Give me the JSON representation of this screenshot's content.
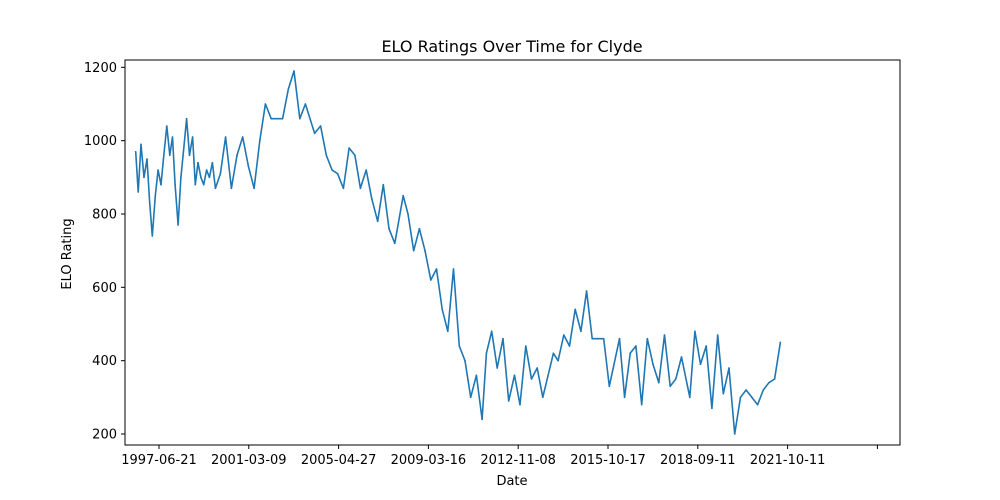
{
  "chart_data": {
    "type": "line",
    "title": "ELO Ratings Over Time for Clyde",
    "xlabel": "Date",
    "ylabel": "ELO Rating",
    "ylim": [
      170,
      1220
    ],
    "grid": false,
    "line_color": "#1f77b4",
    "xlim": [
      "1997-01-01",
      "2030-12-31"
    ],
    "x_ticks": [
      "1997-06-21",
      "2001-03-09",
      "2005-04-27",
      "2009-03-16",
      "2012-11-08",
      "2015-10-17",
      "2018-09-11",
      "2021-10-11",
      ""
    ],
    "y_ticks": [
      200,
      400,
      600,
      800,
      1000,
      1200
    ],
    "series": [
      {
        "x": [
          "1997-06-21",
          "1997-08-01",
          "1997-09-15",
          "1997-11-01",
          "1997-12-20",
          "1998-02-01",
          "1998-03-15",
          "1998-05-01",
          "1998-06-15",
          "1998-08-01",
          "1998-09-15",
          "1998-11-01",
          "1998-12-20",
          "1999-02-01",
          "1999-03-15",
          "1999-05-01",
          "1999-06-15",
          "1999-08-01",
          "1999-09-15",
          "1999-11-01",
          "1999-12-20",
          "2000-02-01",
          "2000-03-15",
          "2000-05-01",
          "2000-06-15",
          "2000-08-01",
          "2000-09-15",
          "2000-11-01",
          "2000-12-20",
          "2001-03-09",
          "2001-06-01",
          "2001-09-01",
          "2001-12-01",
          "2002-03-01",
          "2002-06-01",
          "2002-09-01",
          "2002-12-01",
          "2003-03-01",
          "2003-06-01",
          "2003-09-01",
          "2003-12-01",
          "2004-03-01",
          "2004-06-01",
          "2004-09-01",
          "2004-12-01",
          "2005-04-27",
          "2005-08-01",
          "2005-11-01",
          "2006-02-01",
          "2006-05-01",
          "2006-08-01",
          "2006-11-01",
          "2007-02-01",
          "2007-05-01",
          "2007-08-01",
          "2007-11-01",
          "2008-02-01",
          "2008-05-01",
          "2008-08-01",
          "2008-11-01",
          "2009-03-16",
          "2009-06-01",
          "2009-09-01",
          "2009-12-01",
          "2010-03-01",
          "2010-06-01",
          "2010-09-01",
          "2010-12-01",
          "2011-03-01",
          "2011-06-01",
          "2011-09-01",
          "2011-12-01",
          "2012-03-01",
          "2012-06-01",
          "2012-09-01",
          "2012-11-08",
          "2013-02-01",
          "2013-05-01",
          "2013-08-01",
          "2013-11-01",
          "2014-02-01",
          "2014-05-01",
          "2014-08-01",
          "2014-11-01",
          "2015-02-01",
          "2015-05-01",
          "2015-10-17",
          "2016-01-01",
          "2016-04-01",
          "2016-07-01",
          "2016-10-01",
          "2017-01-01",
          "2017-04-01",
          "2017-07-01",
          "2017-10-01",
          "2018-01-01",
          "2018-04-01",
          "2018-09-11",
          "2018-12-01",
          "2019-03-01",
          "2019-06-01",
          "2019-09-01",
          "2019-12-01",
          "2020-03-01",
          "2020-06-01",
          "2020-09-01",
          "2020-12-01",
          "2021-03-01",
          "2021-06-01",
          "2021-10-11",
          "2022-01-01",
          "2022-04-01",
          "2022-07-01",
          "2022-10-01",
          "2023-01-01",
          "2023-04-01",
          "2023-07-01",
          "2023-10-01",
          "2024-01-01",
          "2024-04-01",
          "2024-07-01",
          "2024-10-01",
          "2025-01-01",
          "2025-04-01",
          "2025-07-01",
          "2025-10-01"
        ],
        "values": [
          970,
          860,
          990,
          900,
          950,
          830,
          740,
          850,
          920,
          880,
          960,
          1040,
          960,
          1010,
          880,
          770,
          900,
          980,
          1060,
          960,
          1010,
          880,
          940,
          900,
          880,
          920,
          900,
          940,
          870,
          910,
          1010,
          870,
          960,
          1010,
          930,
          870,
          1000,
          1100,
          1060,
          1060,
          1060,
          1140,
          1190,
          1060,
          1100,
          1020,
          1040,
          960,
          920,
          910,
          870,
          980,
          960,
          870,
          920,
          840,
          780,
          880,
          760,
          720,
          850,
          800,
          700,
          760,
          700,
          620,
          650,
          540,
          480,
          650,
          440,
          400,
          300,
          360,
          240,
          420,
          480,
          380,
          460,
          290,
          360,
          280,
          440,
          350,
          380,
          300,
          420,
          400,
          470,
          440,
          540,
          480,
          590,
          460,
          460,
          460,
          330,
          460,
          300,
          420,
          440,
          280,
          460,
          390,
          340,
          470,
          330,
          350,
          410,
          300,
          480,
          390,
          440,
          270,
          470,
          310,
          380,
          200,
          300,
          320,
          300,
          280,
          320,
          340,
          350,
          450
        ]
      }
    ]
  }
}
